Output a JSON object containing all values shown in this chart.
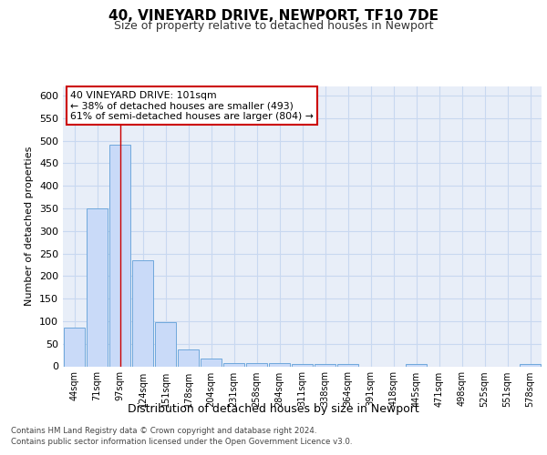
{
  "title": "40, VINEYARD DRIVE, NEWPORT, TF10 7DE",
  "subtitle": "Size of property relative to detached houses in Newport",
  "xlabel": "Distribution of detached houses by size in Newport",
  "ylabel": "Number of detached properties",
  "bar_labels": [
    "44sqm",
    "71sqm",
    "97sqm",
    "124sqm",
    "151sqm",
    "178sqm",
    "204sqm",
    "231sqm",
    "258sqm",
    "284sqm",
    "311sqm",
    "338sqm",
    "364sqm",
    "391sqm",
    "418sqm",
    "445sqm",
    "471sqm",
    "498sqm",
    "525sqm",
    "551sqm",
    "578sqm"
  ],
  "bar_values": [
    85,
    350,
    490,
    235,
    98,
    38,
    18,
    8,
    8,
    8,
    5,
    5,
    5,
    0,
    0,
    5,
    0,
    0,
    0,
    0,
    5
  ],
  "bar_color": "#c9daf8",
  "bar_edge_color": "#6fa8dc",
  "highlight_index": 2,
  "highlight_line_color": "#cc0000",
  "property_label": "40 VINEYARD DRIVE: 101sqm",
  "annotation_line1": "← 38% of detached houses are smaller (493)",
  "annotation_line2": "61% of semi-detached houses are larger (804) →",
  "annotation_box_color": "#ffffff",
  "annotation_box_edge_color": "#cc0000",
  "ylim": [
    0,
    620
  ],
  "yticks": [
    0,
    50,
    100,
    150,
    200,
    250,
    300,
    350,
    400,
    450,
    500,
    550,
    600
  ],
  "grid_color": "#c8d8f0",
  "background_color": "#e8eef8",
  "footer_line1": "Contains HM Land Registry data © Crown copyright and database right 2024.",
  "footer_line2": "Contains public sector information licensed under the Open Government Licence v3.0."
}
